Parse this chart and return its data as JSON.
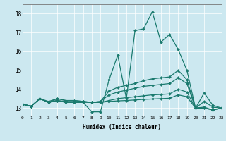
{
  "xlabel": "Humidex (Indice chaleur)",
  "bg_color": "#cce8f0",
  "line_color": "#1a7a6e",
  "xlim": [
    0,
    23
  ],
  "ylim": [
    12.6,
    18.5
  ],
  "yticks": [
    13,
    14,
    15,
    16,
    17,
    18
  ],
  "xticks": [
    0,
    1,
    2,
    3,
    4,
    5,
    6,
    7,
    8,
    9,
    10,
    11,
    12,
    13,
    14,
    15,
    16,
    17,
    18,
    19,
    20,
    21,
    22,
    23
  ],
  "lines": [
    {
      "x": [
        0,
        1,
        2,
        3,
        4,
        5,
        6,
        7,
        8,
        9,
        10,
        11,
        12,
        13,
        14,
        15,
        16,
        17,
        18,
        19,
        20,
        21,
        22,
        23
      ],
      "y": [
        13.2,
        13.1,
        13.5,
        13.3,
        13.4,
        13.3,
        13.3,
        13.3,
        12.8,
        12.8,
        14.5,
        15.8,
        13.5,
        17.1,
        17.2,
        18.1,
        16.5,
        16.9,
        16.1,
        15.0,
        13.0,
        13.8,
        13.15,
        13.0
      ]
    },
    {
      "x": [
        0,
        1,
        2,
        3,
        4,
        5,
        6,
        7,
        8,
        9,
        10,
        11,
        12,
        13,
        14,
        15,
        16,
        17,
        18,
        19,
        20,
        21,
        22,
        23
      ],
      "y": [
        13.2,
        13.1,
        13.5,
        13.3,
        13.5,
        13.4,
        13.4,
        13.35,
        13.3,
        13.35,
        13.9,
        14.1,
        14.2,
        14.3,
        14.45,
        14.55,
        14.6,
        14.65,
        15.0,
        14.5,
        13.0,
        13.35,
        13.05,
        13.0
      ]
    },
    {
      "x": [
        0,
        1,
        2,
        3,
        4,
        5,
        6,
        7,
        8,
        9,
        10,
        11,
        12,
        13,
        14,
        15,
        16,
        17,
        18,
        19,
        20,
        21,
        22,
        23
      ],
      "y": [
        13.2,
        13.1,
        13.5,
        13.35,
        13.5,
        13.4,
        13.4,
        13.35,
        13.3,
        13.35,
        13.7,
        13.85,
        13.95,
        14.05,
        14.15,
        14.2,
        14.25,
        14.3,
        14.6,
        14.3,
        13.0,
        13.05,
        12.9,
        13.0
      ]
    },
    {
      "x": [
        0,
        1,
        2,
        3,
        4,
        5,
        6,
        7,
        8,
        9,
        10,
        11,
        12,
        13,
        14,
        15,
        16,
        17,
        18,
        19,
        20,
        21,
        22,
        23
      ],
      "y": [
        13.2,
        13.1,
        13.5,
        13.3,
        13.4,
        13.3,
        13.3,
        13.3,
        13.3,
        13.3,
        13.4,
        13.5,
        13.55,
        13.6,
        13.65,
        13.7,
        13.72,
        13.75,
        14.0,
        13.85,
        13.0,
        13.0,
        12.9,
        13.0
      ]
    },
    {
      "x": [
        0,
        1,
        2,
        3,
        4,
        5,
        6,
        7,
        8,
        9,
        10,
        11,
        12,
        13,
        14,
        15,
        16,
        17,
        18,
        19,
        20,
        21,
        22,
        23
      ],
      "y": [
        13.2,
        13.1,
        13.5,
        13.3,
        13.4,
        13.35,
        13.35,
        13.35,
        13.3,
        13.3,
        13.35,
        13.38,
        13.4,
        13.43,
        13.46,
        13.48,
        13.5,
        13.52,
        13.7,
        13.6,
        13.0,
        13.0,
        12.9,
        13.0
      ]
    }
  ]
}
